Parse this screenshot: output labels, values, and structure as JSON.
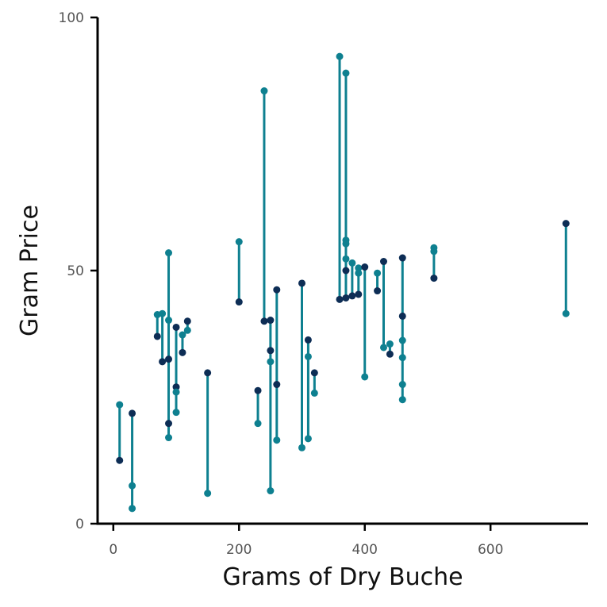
{
  "chart_data": {
    "type": "scatter",
    "title": "",
    "xlabel": "Grams of Dry Buche",
    "ylabel": "Gram Price",
    "xlim": [
      -25,
      755
    ],
    "ylim": [
      0,
      100
    ],
    "x_ticks": [
      0,
      200,
      400,
      600
    ],
    "y_ticks": [
      0,
      50,
      100
    ],
    "grid": false,
    "legend": "none",
    "colors": {
      "segment": "#0e8090",
      "teal_point": "#0e8090",
      "navy_point": "#0d2d55",
      "axis": "#000000"
    },
    "segments": [
      {
        "x": 10,
        "y1": 12.5,
        "y2": 23.5
      },
      {
        "x": 30,
        "y1": 3,
        "y2": 21.8
      },
      {
        "x": 70,
        "y1": 37,
        "y2": 41.3
      },
      {
        "x": 78,
        "y1": 32,
        "y2": 41.5
      },
      {
        "x": 88,
        "y1": 17,
        "y2": 53.5
      },
      {
        "x": 100,
        "y1": 22,
        "y2": 38.8
      },
      {
        "x": 110,
        "y1": 33.8,
        "y2": 37.3
      },
      {
        "x": 118,
        "y1": 38.2,
        "y2": 40
      },
      {
        "x": 150,
        "y1": 6,
        "y2": 29.8
      },
      {
        "x": 200,
        "y1": 43.8,
        "y2": 55.7
      },
      {
        "x": 230,
        "y1": 19.8,
        "y2": 26.3
      },
      {
        "x": 240,
        "y1": 40,
        "y2": 85.5
      },
      {
        "x": 250,
        "y1": 6.5,
        "y2": 40.2
      },
      {
        "x": 260,
        "y1": 16.5,
        "y2": 46.2
      },
      {
        "x": 300,
        "y1": 15,
        "y2": 47.5
      },
      {
        "x": 310,
        "y1": 16.8,
        "y2": 36.3
      },
      {
        "x": 320,
        "y1": 25.8,
        "y2": 29.8
      },
      {
        "x": 360,
        "y1": 44.3,
        "y2": 92.3
      },
      {
        "x": 370,
        "y1": 44.6,
        "y2": 89
      },
      {
        "x": 380,
        "y1": 45,
        "y2": 51.5
      },
      {
        "x": 390,
        "y1": 45.3,
        "y2": 50.5
      },
      {
        "x": 400,
        "y1": 29,
        "y2": 50.7
      },
      {
        "x": 420,
        "y1": 46,
        "y2": 49.5
      },
      {
        "x": 430,
        "y1": 34.8,
        "y2": 51.8
      },
      {
        "x": 440,
        "y1": 33.5,
        "y2": 35.5
      },
      {
        "x": 460,
        "y1": 24.5,
        "y2": 52.5
      },
      {
        "x": 510,
        "y1": 48.5,
        "y2": 54.5
      },
      {
        "x": 720,
        "y1": 41.5,
        "y2": 59.3
      }
    ],
    "points": [
      {
        "x": 10,
        "y": 12.5,
        "color": "navy"
      },
      {
        "x": 10,
        "y": 23.5,
        "color": "teal"
      },
      {
        "x": 30,
        "y": 21.8,
        "color": "navy"
      },
      {
        "x": 30,
        "y": 7.5,
        "color": "teal"
      },
      {
        "x": 30,
        "y": 3,
        "color": "teal"
      },
      {
        "x": 70,
        "y": 37,
        "color": "navy"
      },
      {
        "x": 70,
        "y": 41.3,
        "color": "teal"
      },
      {
        "x": 78,
        "y": 41.5,
        "color": "teal"
      },
      {
        "x": 78,
        "y": 32,
        "color": "navy"
      },
      {
        "x": 88,
        "y": 53.5,
        "color": "teal"
      },
      {
        "x": 88,
        "y": 40.2,
        "color": "teal"
      },
      {
        "x": 88,
        "y": 32.5,
        "color": "navy"
      },
      {
        "x": 88,
        "y": 19.8,
        "color": "navy"
      },
      {
        "x": 88,
        "y": 17,
        "color": "teal"
      },
      {
        "x": 100,
        "y": 38.8,
        "color": "navy"
      },
      {
        "x": 100,
        "y": 27,
        "color": "navy"
      },
      {
        "x": 100,
        "y": 26,
        "color": "teal"
      },
      {
        "x": 100,
        "y": 22,
        "color": "teal"
      },
      {
        "x": 110,
        "y": 37.3,
        "color": "teal"
      },
      {
        "x": 110,
        "y": 33.8,
        "color": "navy"
      },
      {
        "x": 118,
        "y": 40,
        "color": "navy"
      },
      {
        "x": 118,
        "y": 38.2,
        "color": "teal"
      },
      {
        "x": 150,
        "y": 29.8,
        "color": "navy"
      },
      {
        "x": 150,
        "y": 6,
        "color": "teal"
      },
      {
        "x": 200,
        "y": 55.7,
        "color": "teal"
      },
      {
        "x": 200,
        "y": 43.8,
        "color": "navy"
      },
      {
        "x": 230,
        "y": 26.3,
        "color": "navy"
      },
      {
        "x": 230,
        "y": 19.8,
        "color": "teal"
      },
      {
        "x": 240,
        "y": 85.5,
        "color": "teal"
      },
      {
        "x": 240,
        "y": 40,
        "color": "navy"
      },
      {
        "x": 250,
        "y": 40.2,
        "color": "navy"
      },
      {
        "x": 250,
        "y": 34.2,
        "color": "navy"
      },
      {
        "x": 250,
        "y": 32,
        "color": "teal"
      },
      {
        "x": 250,
        "y": 6.5,
        "color": "teal"
      },
      {
        "x": 260,
        "y": 46.2,
        "color": "navy"
      },
      {
        "x": 260,
        "y": 27.5,
        "color": "navy"
      },
      {
        "x": 260,
        "y": 16.5,
        "color": "teal"
      },
      {
        "x": 300,
        "y": 47.5,
        "color": "navy"
      },
      {
        "x": 300,
        "y": 15,
        "color": "teal"
      },
      {
        "x": 310,
        "y": 36.3,
        "color": "navy"
      },
      {
        "x": 310,
        "y": 33,
        "color": "teal"
      },
      {
        "x": 310,
        "y": 16.8,
        "color": "teal"
      },
      {
        "x": 320,
        "y": 29.8,
        "color": "navy"
      },
      {
        "x": 320,
        "y": 25.8,
        "color": "teal"
      },
      {
        "x": 360,
        "y": 92.3,
        "color": "teal"
      },
      {
        "x": 360,
        "y": 44.3,
        "color": "navy"
      },
      {
        "x": 370,
        "y": 89,
        "color": "teal"
      },
      {
        "x": 370,
        "y": 56,
        "color": "teal"
      },
      {
        "x": 370,
        "y": 55.3,
        "color": "teal"
      },
      {
        "x": 370,
        "y": 52.3,
        "color": "teal"
      },
      {
        "x": 370,
        "y": 50,
        "color": "navy"
      },
      {
        "x": 370,
        "y": 44.6,
        "color": "navy"
      },
      {
        "x": 380,
        "y": 51.5,
        "color": "teal"
      },
      {
        "x": 380,
        "y": 45,
        "color": "navy"
      },
      {
        "x": 390,
        "y": 50.5,
        "color": "teal"
      },
      {
        "x": 390,
        "y": 49.5,
        "color": "teal"
      },
      {
        "x": 390,
        "y": 45.3,
        "color": "navy"
      },
      {
        "x": 400,
        "y": 50.7,
        "color": "navy"
      },
      {
        "x": 400,
        "y": 29,
        "color": "teal"
      },
      {
        "x": 420,
        "y": 49.5,
        "color": "teal"
      },
      {
        "x": 420,
        "y": 46,
        "color": "navy"
      },
      {
        "x": 430,
        "y": 51.8,
        "color": "navy"
      },
      {
        "x": 430,
        "y": 34.8,
        "color": "teal"
      },
      {
        "x": 440,
        "y": 35.5,
        "color": "teal"
      },
      {
        "x": 440,
        "y": 33.5,
        "color": "navy"
      },
      {
        "x": 460,
        "y": 52.5,
        "color": "navy"
      },
      {
        "x": 460,
        "y": 41,
        "color": "navy"
      },
      {
        "x": 460,
        "y": 36.2,
        "color": "teal"
      },
      {
        "x": 460,
        "y": 32.8,
        "color": "teal"
      },
      {
        "x": 460,
        "y": 27.5,
        "color": "teal"
      },
      {
        "x": 460,
        "y": 24.5,
        "color": "teal"
      },
      {
        "x": 510,
        "y": 54.5,
        "color": "teal"
      },
      {
        "x": 510,
        "y": 53.8,
        "color": "teal"
      },
      {
        "x": 510,
        "y": 48.5,
        "color": "navy"
      },
      {
        "x": 720,
        "y": 59.3,
        "color": "navy"
      },
      {
        "x": 720,
        "y": 41.5,
        "color": "teal"
      }
    ]
  }
}
